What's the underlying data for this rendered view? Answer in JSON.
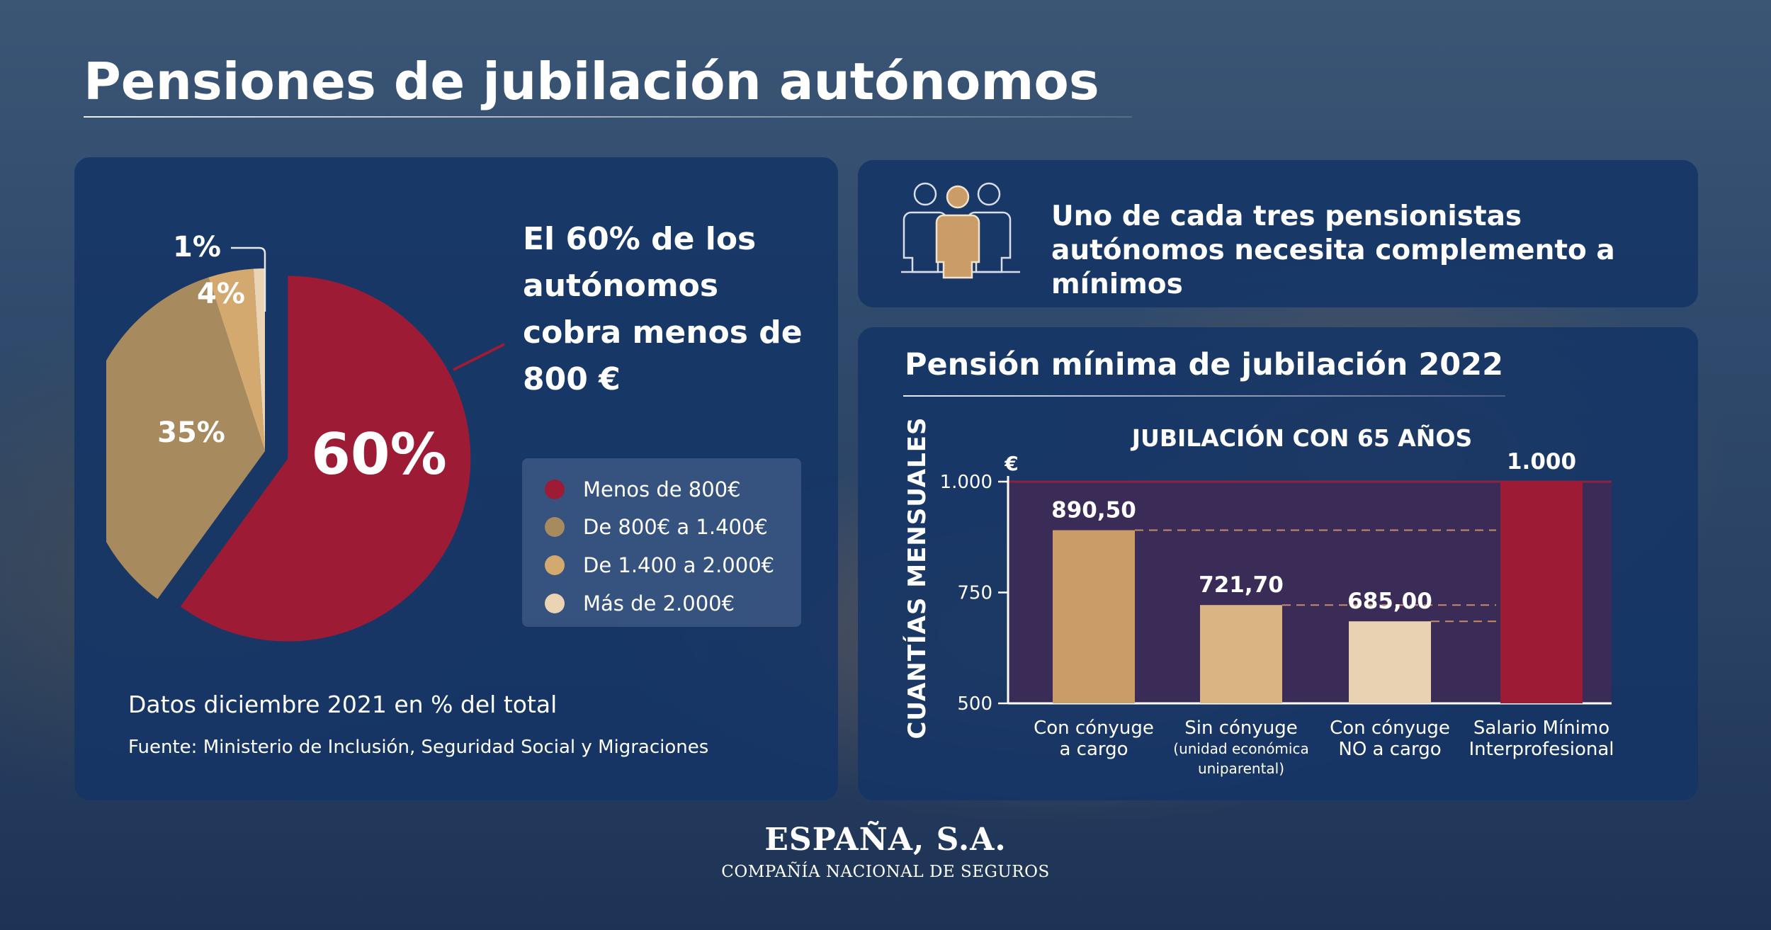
{
  "title": "Pensiones de jubilación autónomos",
  "pie_section": {
    "headline": "El 60% de los autónomos cobra menos de 800 €",
    "note": "Datos diciembre 2021 en % del total",
    "source": "Fuente: Ministerio de Inclusión, Seguridad Social y Migraciones",
    "legend": [
      {
        "label": "Menos de 800€",
        "color": "#9e1b36"
      },
      {
        "label": "De 800€ a 1.400€",
        "color": "#a88a5f"
      },
      {
        "label": "De 1.400 a 2.000€",
        "color": "#d4a970"
      },
      {
        "label": "Más de 2.000€",
        "color": "#ead4b4"
      }
    ]
  },
  "callout": {
    "text": "Uno de cada tres pensionistas autónomos necesita complemento a mínimos",
    "icon": "people-group-icon"
  },
  "bar_section": {
    "title": "Pensión mínima de jubilación 2022"
  },
  "chart_data": [
    {
      "type": "pie",
      "labels": [
        "Menos de 800€",
        "De 800€ a 1.400€",
        "De 1.400 a 2.000€",
        "Más de 2.000€"
      ],
      "values": [
        60,
        35,
        4,
        1
      ],
      "value_labels": [
        "60%",
        "35%",
        "4%",
        "1%"
      ],
      "colors": [
        "#9e1b36",
        "#a88a5f",
        "#d4a970",
        "#ead4b4"
      ],
      "exploded": "Menos de 800€",
      "legend_position": "right"
    },
    {
      "type": "bar",
      "title": "JUBILACIÓN CON 65 AÑOS",
      "ylabel": "CUANTÍAS MENSUALES",
      "yunit": "€",
      "ylim": [
        500,
        1000
      ],
      "yticks": [
        500,
        750,
        1000
      ],
      "ytick_labels": [
        "500",
        "750",
        "1.000"
      ],
      "categories": [
        {
          "line1": "Con cónyuge",
          "line2": "a cargo",
          "line3": ""
        },
        {
          "line1": "Sin cónyuge",
          "line2": "(unidad económica",
          "line3": "uniparental)"
        },
        {
          "line1": "Con cónyuge",
          "line2": "NO a cargo",
          "line3": ""
        },
        {
          "line1": "Salario Mínimo",
          "line2": "Interprofesional",
          "line3": ""
        }
      ],
      "values": [
        890.5,
        721.7,
        685.0,
        1000
      ],
      "value_labels": [
        "890,50",
        "721,70",
        "685,00",
        "1.000"
      ],
      "colors": [
        "#c99c68",
        "#d9b583",
        "#e8d2b2",
        "#9e1b36"
      ],
      "highlight_band_color": "#3f2a55",
      "reference_lines": "dashed lines at the top of each pension bar"
    }
  ],
  "brand": {
    "name": "ESPAÑA, S.A.",
    "subtitle": "COMPAÑÍA NACIONAL DE SEGUROS"
  }
}
